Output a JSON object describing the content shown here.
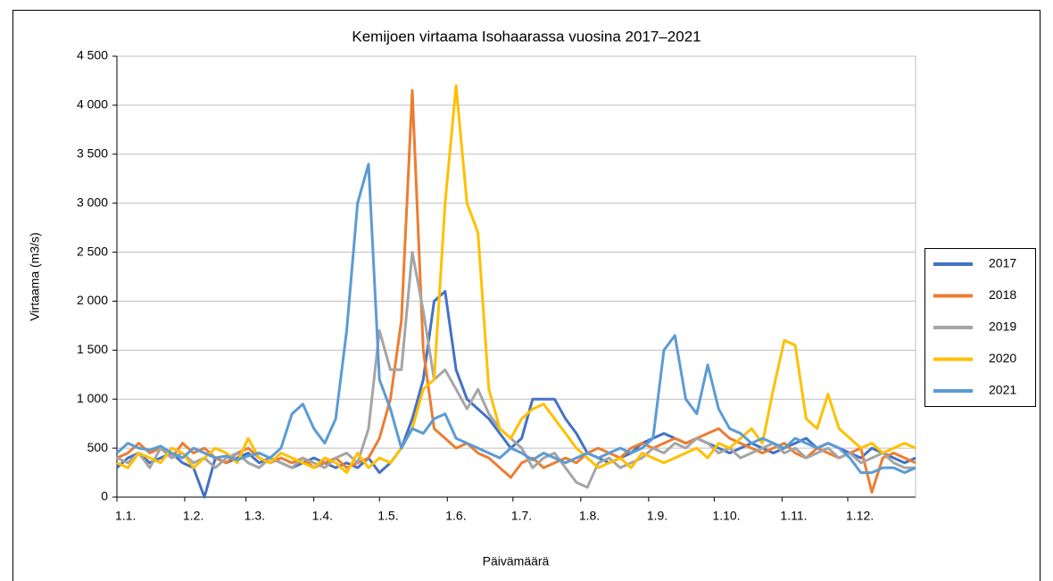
{
  "chart_data": {
    "type": "line",
    "title": "Kemijoen virtaama Isohaarassa vuosina 2017–2021",
    "x_label": "Päivämäärä",
    "y_label": "Virtaama (m3/s)",
    "legend": "right",
    "grid": true,
    "xlim": [
      0,
      365
    ],
    "xticks": [
      {
        "value": 0,
        "label": "1.1."
      },
      {
        "value": 31,
        "label": "1.2."
      },
      {
        "value": 59,
        "label": "1.3."
      },
      {
        "value": 90,
        "label": "1.4."
      },
      {
        "value": 120,
        "label": "1.5."
      },
      {
        "value": 151,
        "label": "1.6."
      },
      {
        "value": 181,
        "label": "1.7."
      },
      {
        "value": 212,
        "label": "1.8."
      },
      {
        "value": 243,
        "label": "1.9."
      },
      {
        "value": 273,
        "label": "1.10."
      },
      {
        "value": 304,
        "label": "1.11."
      },
      {
        "value": 334,
        "label": "1.12."
      }
    ],
    "ylim": [
      0,
      4500
    ],
    "yticks": [
      0,
      500,
      {
        "value": 1000,
        "label": "1 000"
      },
      {
        "value": 1500,
        "label": "1 500"
      },
      {
        "value": 2000,
        "label": "2 000"
      },
      {
        "value": 2500,
        "label": "2 500"
      },
      {
        "value": 3000,
        "label": "3 000"
      },
      {
        "value": 3500,
        "label": "3 500"
      },
      {
        "value": 4000,
        "label": "4 000"
      },
      {
        "value": 4500,
        "label": "4 500"
      }
    ],
    "x": [
      0,
      5,
      10,
      15,
      20,
      25,
      30,
      35,
      40,
      45,
      50,
      55,
      60,
      65,
      70,
      75,
      80,
      85,
      90,
      95,
      100,
      105,
      110,
      115,
      120,
      125,
      130,
      135,
      140,
      145,
      150,
      155,
      160,
      165,
      170,
      175,
      180,
      185,
      190,
      195,
      200,
      205,
      210,
      215,
      220,
      225,
      230,
      235,
      240,
      245,
      250,
      255,
      260,
      265,
      270,
      275,
      280,
      285,
      290,
      295,
      300,
      305,
      310,
      315,
      320,
      325,
      330,
      335,
      340,
      345,
      350,
      355,
      360,
      365
    ],
    "series": [
      {
        "name": "2017",
        "color": "#4472c4",
        "values": [
          300,
          400,
          450,
          350,
          400,
          450,
          350,
          300,
          0,
          400,
          350,
          400,
          450,
          350,
          400,
          350,
          300,
          350,
          400,
          350,
          300,
          350,
          300,
          400,
          250,
          350,
          500,
          800,
          1200,
          2000,
          2100,
          1300,
          1000,
          900,
          800,
          650,
          500,
          600,
          1000,
          1000,
          1000,
          800,
          650,
          450,
          400,
          350,
          400,
          450,
          550,
          600,
          650,
          600,
          550,
          600,
          550,
          500,
          450,
          500,
          550,
          500,
          450,
          500,
          550,
          600,
          500,
          550,
          500,
          450,
          400,
          500,
          450,
          400,
          350,
          400
        ]
      },
      {
        "name": "2018",
        "color": "#ed7d31",
        "values": [
          400,
          450,
          550,
          450,
          500,
          400,
          550,
          450,
          500,
          400,
          350,
          450,
          500,
          400,
          350,
          400,
          350,
          400,
          300,
          350,
          400,
          300,
          350,
          400,
          600,
          1000,
          1800,
          4150,
          1500,
          700,
          600,
          500,
          550,
          450,
          400,
          300,
          200,
          350,
          400,
          300,
          350,
          400,
          350,
          450,
          500,
          450,
          400,
          500,
          550,
          500,
          550,
          600,
          550,
          600,
          650,
          700,
          600,
          550,
          500,
          450,
          500,
          550,
          450,
          400,
          500,
          450,
          400,
          450,
          500,
          50,
          400,
          450,
          400,
          350
        ]
      },
      {
        "name": "2019",
        "color": "#a5a5a5",
        "values": [
          400,
          350,
          450,
          300,
          500,
          400,
          450,
          350,
          400,
          300,
          400,
          450,
          350,
          300,
          400,
          350,
          300,
          400,
          350,
          300,
          400,
          450,
          350,
          700,
          1700,
          1300,
          1300,
          2500,
          1900,
          1200,
          1300,
          1100,
          900,
          1100,
          850,
          700,
          600,
          500,
          300,
          400,
          450,
          300,
          150,
          100,
          350,
          400,
          300,
          350,
          400,
          500,
          450,
          550,
          500,
          600,
          550,
          450,
          500,
          400,
          450,
          500,
          550,
          450,
          500,
          400,
          450,
          500,
          400,
          450,
          350,
          400,
          450,
          350,
          300,
          300
        ]
      },
      {
        "name": "2020",
        "color": "#ffc000",
        "values": [
          350,
          300,
          450,
          400,
          350,
          500,
          450,
          300,
          400,
          500,
          450,
          350,
          600,
          400,
          350,
          450,
          400,
          350,
          300,
          400,
          350,
          250,
          450,
          300,
          400,
          350,
          500,
          700,
          1100,
          1200,
          3000,
          4200,
          3000,
          2700,
          1100,
          700,
          600,
          800,
          900,
          950,
          800,
          650,
          500,
          400,
          300,
          350,
          400,
          300,
          450,
          400,
          350,
          400,
          450,
          500,
          400,
          550,
          500,
          600,
          700,
          550,
          1100,
          1600,
          1550,
          800,
          700,
          1050,
          700,
          600,
          500,
          550,
          450,
          500,
          550,
          500
        ]
      },
      {
        "name": "2021",
        "color": "#5b9bd5",
        "values": [
          450,
          550,
          500,
          480,
          520,
          450,
          400,
          500,
          450,
          400,
          420,
          380,
          420,
          450,
          400,
          500,
          850,
          950,
          700,
          550,
          800,
          1700,
          3000,
          3400,
          1200,
          900,
          500,
          700,
          650,
          800,
          850,
          600,
          550,
          500,
          450,
          400,
          500,
          450,
          380,
          450,
          400,
          350,
          400,
          450,
          400,
          450,
          500,
          450,
          500,
          600,
          1500,
          1650,
          1000,
          850,
          1350,
          900,
          700,
          650,
          550,
          600,
          550,
          500,
          600,
          550,
          500,
          550,
          500,
          400,
          250,
          250,
          300,
          300,
          250,
          300
        ]
      }
    ]
  }
}
